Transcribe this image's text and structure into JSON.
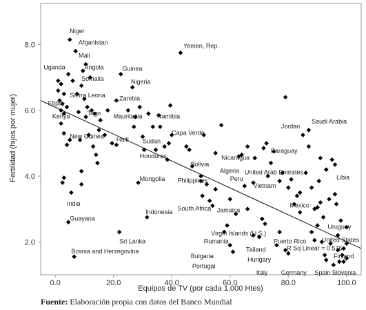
{
  "chart_data": {
    "type": "scatter",
    "title": "",
    "xlabel": "Equipos de TV (por cada 1.000 Htes)",
    "ylabel": "Fertilidad (hijos por mujer)",
    "xlim": [
      -5,
      105
    ],
    "ylim": [
      1.0,
      9.25
    ],
    "x_ticks": [
      0,
      20,
      40,
      60,
      80,
      100
    ],
    "x_tick_labels": [
      "0.0",
      "20.0",
      "40.0",
      "60.0",
      "80.0",
      "100.0"
    ],
    "y_ticks": [
      2,
      4,
      6,
      8
    ],
    "y_tick_labels": [
      "2.0",
      "4.0",
      "6.0",
      "8.0"
    ],
    "grid": false,
    "trendline": {
      "type": "linear",
      "x": [
        -5,
        105
      ],
      "y": [
        6.3,
        1.8
      ]
    },
    "r_squared_label": "R Sq Linear = 0.576",
    "points": [
      [
        1,
        6.6
      ],
      [
        1.5,
        6.3
      ],
      [
        2,
        6.8
      ],
      [
        2.5,
        6.2
      ],
      [
        3,
        6.5
      ],
      [
        2,
        6.0
      ],
      [
        1,
        6.9
      ],
      [
        3,
        5.9
      ],
      [
        2,
        5.6
      ],
      [
        4,
        6.1
      ],
      [
        4.5,
        7.1
      ],
      [
        3,
        5.3
      ],
      [
        5,
        5.1
      ],
      [
        2.5,
        3.8
      ],
      [
        3,
        3.95
      ],
      [
        4,
        4.95
      ],
      [
        4.5,
        2.6
      ],
      [
        5,
        8.15
      ],
      [
        5.5,
        3.5
      ],
      [
        6.5,
        1.55
      ],
      [
        6,
        6.9
      ],
      [
        7,
        7.8
      ],
      [
        7.5,
        6.5
      ],
      [
        8,
        5.95
      ],
      [
        8.5,
        5.1
      ],
      [
        9,
        6.75
      ],
      [
        9.5,
        7.2
      ],
      [
        10,
        6.35
      ],
      [
        10.5,
        7.4
      ],
      [
        10.5,
        5.8
      ],
      [
        11,
        6.1
      ],
      [
        11.5,
        5.25
      ],
      [
        12,
        7.0
      ],
      [
        12.5,
        6.0
      ],
      [
        13,
        4.9
      ],
      [
        13.5,
        5.9
      ],
      [
        14,
        4.65
      ],
      [
        14.5,
        4.4
      ],
      [
        15,
        5.4
      ],
      [
        15.5,
        5.7
      ],
      [
        9,
        3.75
      ],
      [
        9,
        4.15
      ],
      [
        17,
        5.25
      ],
      [
        18,
        6.0
      ],
      [
        19.5,
        5.0
      ],
      [
        21,
        6.3
      ],
      [
        21,
        4.95
      ],
      [
        22,
        2.3
      ],
      [
        22.5,
        7.1
      ],
      [
        25,
        6.0
      ],
      [
        26.5,
        6.7
      ],
      [
        27,
        5.5
      ],
      [
        27.5,
        5.8
      ],
      [
        28.5,
        3.8
      ],
      [
        29,
        6.1
      ],
      [
        30,
        5.2
      ],
      [
        30.5,
        4.8
      ],
      [
        31.5,
        2.75
      ],
      [
        32,
        5.9
      ],
      [
        33.5,
        5.5
      ],
      [
        34.5,
        4.8
      ],
      [
        35.5,
        5.85
      ],
      [
        36,
        5.5
      ],
      [
        37.5,
        4.9
      ],
      [
        38.5,
        4.5
      ],
      [
        39,
        5.0
      ],
      [
        39.5,
        6.15
      ],
      [
        40,
        5.25
      ],
      [
        43,
        7.75
      ],
      [
        45,
        4.9
      ],
      [
        46,
        4.8
      ],
      [
        47,
        4.3
      ],
      [
        50,
        4.0
      ],
      [
        50,
        3.85
      ],
      [
        50.5,
        3.4
      ],
      [
        51,
        5.25
      ],
      [
        52,
        3.75
      ],
      [
        53,
        3.25
      ],
      [
        54,
        3.1
      ],
      [
        55,
        3.6
      ],
      [
        55,
        4.7
      ],
      [
        57,
        5.55
      ],
      [
        58,
        2.3
      ],
      [
        59,
        2.5
      ],
      [
        60,
        3.3
      ],
      [
        60,
        1.9
      ],
      [
        61,
        1.7
      ],
      [
        62,
        2.85
      ],
      [
        63,
        4.6
      ],
      [
        64,
        4.65
      ],
      [
        65,
        3.7
      ],
      [
        66,
        4.9
      ],
      [
        66,
        3.0
      ],
      [
        68,
        3.8
      ],
      [
        68,
        2.2
      ],
      [
        68.5,
        4.55
      ],
      [
        70,
        2.15
      ],
      [
        71,
        2.7
      ],
      [
        71.5,
        4.85
      ],
      [
        72,
        2.55
      ],
      [
        72.5,
        5.0
      ],
      [
        73,
        4.0
      ],
      [
        74,
        4.4
      ],
      [
        75,
        4.75
      ],
      [
        76,
        1.9
      ],
      [
        77,
        3.85
      ],
      [
        77,
        2.3
      ],
      [
        78,
        4.1
      ],
      [
        79,
        6.4
      ],
      [
        79,
        1.75
      ],
      [
        80,
        1.65
      ],
      [
        80,
        3.65
      ],
      [
        81,
        3.9
      ],
      [
        82,
        3.15
      ],
      [
        83,
        3.4
      ],
      [
        84,
        3.5
      ],
      [
        84,
        2.9
      ],
      [
        85,
        5.25
      ],
      [
        86,
        4.1
      ],
      [
        87,
        4.9
      ],
      [
        87,
        5.4
      ],
      [
        88,
        3.65
      ],
      [
        88,
        2.3
      ],
      [
        89,
        3.0
      ],
      [
        89,
        2.05
      ],
      [
        90,
        3.05
      ],
      [
        90,
        2.5
      ],
      [
        90.5,
        3.85
      ],
      [
        91,
        4.55
      ],
      [
        91,
        3.2
      ],
      [
        91.5,
        2.0
      ],
      [
        92,
        2.75
      ],
      [
        92.5,
        1.6
      ],
      [
        93,
        4.2
      ],
      [
        93,
        1.45
      ],
      [
        94,
        3.3
      ],
      [
        94.5,
        1.95
      ],
      [
        95,
        4.5
      ],
      [
        95.5,
        1.3
      ],
      [
        96,
        4.35
      ],
      [
        96,
        3.45
      ],
      [
        96.5,
        3.15
      ],
      [
        97,
        2.2
      ],
      [
        97,
        1.75
      ],
      [
        97.5,
        1.4
      ],
      [
        98,
        2.65
      ],
      [
        98.5,
        1.6
      ],
      [
        99,
        1.8
      ],
      [
        99,
        1.4
      ],
      [
        100,
        1.95
      ],
      [
        100,
        1.5
      ],
      [
        100,
        2.45
      ]
    ],
    "annotations": [
      {
        "text": "Niger",
        "x": 5,
        "y": 8.35
      },
      {
        "text": "Afganistan",
        "x": 8,
        "y": 8.0
      },
      {
        "text": "Mali",
        "x": 8,
        "y": 7.6
      },
      {
        "text": "Uganda",
        "x": -4,
        "y": 7.25
      },
      {
        "text": "Angola",
        "x": 10,
        "y": 7.25
      },
      {
        "text": "Guinea",
        "x": 23,
        "y": 7.2
      },
      {
        "text": "Yemen, Rep.",
        "x": 44,
        "y": 7.9
      },
      {
        "text": "Somalia",
        "x": 9,
        "y": 6.9
      },
      {
        "text": "Nigeria",
        "x": 26,
        "y": 6.8
      },
      {
        "text": "Sierra Leona",
        "x": 5,
        "y": 6.4
      },
      {
        "text": "Zambia",
        "x": 22,
        "y": 6.3
      },
      {
        "text": "Etipia",
        "x": -2.5,
        "y": 6.15
      },
      {
        "text": "Togo",
        "x": 11,
        "y": 5.85
      },
      {
        "text": "Kenya",
        "x": -1,
        "y": 5.75
      },
      {
        "text": "Mauritania",
        "x": 20,
        "y": 5.75
      },
      {
        "text": "Namibia",
        "x": 35,
        "y": 5.75
      },
      {
        "text": "Capa Verde",
        "x": 40,
        "y": 5.25
      },
      {
        "text": "Jordan",
        "x": 77.5,
        "y": 5.45
      },
      {
        "text": "Saudi Arabia",
        "x": 88,
        "y": 5.6
      },
      {
        "text": "New Guinea",
        "x": 5,
        "y": 5.15
      },
      {
        "text": "Haiti",
        "x": 21,
        "y": 5.05
      },
      {
        "text": "Sudan",
        "x": 30,
        "y": 5.0
      },
      {
        "text": "Paraguay",
        "x": 74,
        "y": 4.7
      },
      {
        "text": "Honduras",
        "x": 29,
        "y": 4.55
      },
      {
        "text": "Bolivia",
        "x": 46.5,
        "y": 4.3
      },
      {
        "text": "Nicaragua",
        "x": 57,
        "y": 4.5
      },
      {
        "text": "Algeria",
        "x": 56.5,
        "y": 4.1
      },
      {
        "text": "United Arab Emirates",
        "x": 65,
        "y": 4.05
      },
      {
        "text": "Libia",
        "x": 96.5,
        "y": 3.9
      },
      {
        "text": "Mongolia",
        "x": 29,
        "y": 3.85
      },
      {
        "text": "Philippines",
        "x": 42,
        "y": 3.8
      },
      {
        "text": "Peru",
        "x": 60,
        "y": 3.85
      },
      {
        "text": "Vietnam",
        "x": 68,
        "y": 3.65
      },
      {
        "text": "India",
        "x": 4,
        "y": 3.1
      },
      {
        "text": "South Africa",
        "x": 42,
        "y": 2.95
      },
      {
        "text": "Jamaica",
        "x": 55.5,
        "y": 2.9
      },
      {
        "text": "Mexico",
        "x": 80.5,
        "y": 3.05
      },
      {
        "text": "Indonesia",
        "x": 31,
        "y": 2.85
      },
      {
        "text": "Guayana",
        "x": 5,
        "y": 2.65
      },
      {
        "text": "Uruguay",
        "x": 93.5,
        "y": 2.4
      },
      {
        "text": "Virgin Islands (U.S.)",
        "x": 53.5,
        "y": 2.2
      },
      {
        "text": "Sri Lanka",
        "x": 22,
        "y": 1.95
      },
      {
        "text": "Puerto Rico",
        "x": 75,
        "y": 1.95
      },
      {
        "text": "United States",
        "x": 91.5,
        "y": 2.0
      },
      {
        "text": "Rumania",
        "x": 51,
        "y": 1.95
      },
      {
        "text": "Tailand",
        "x": 65.5,
        "y": 1.7
      },
      {
        "text": "R Sq Linear = 0.576",
        "x": 79.5,
        "y": 1.75
      },
      {
        "text": "Bosnia and Herzegovina",
        "x": 5.5,
        "y": 1.65
      },
      {
        "text": "Bulgaria",
        "x": 46.5,
        "y": 1.5
      },
      {
        "text": "Hungary",
        "x": 66,
        "y": 1.4
      },
      {
        "text": "Finland",
        "x": 95.5,
        "y": 1.5
      },
      {
        "text": "Portugal",
        "x": 47,
        "y": 1.2
      },
      {
        "text": "Italy",
        "x": 69,
        "y": 1.0
      },
      {
        "text": "Germany",
        "x": 77.5,
        "y": 1.0
      },
      {
        "text": "Spain",
        "x": 89,
        "y": 1.0
      },
      {
        "text": "Slovenia",
        "x": 95,
        "y": 1.0
      }
    ],
    "colors": {
      "marker": "#000000",
      "trendline": "#333333",
      "axis": "#999999"
    }
  },
  "source": {
    "label": "Fuente:",
    "text": "Elaboración propia con datos del Banco Mundial"
  }
}
